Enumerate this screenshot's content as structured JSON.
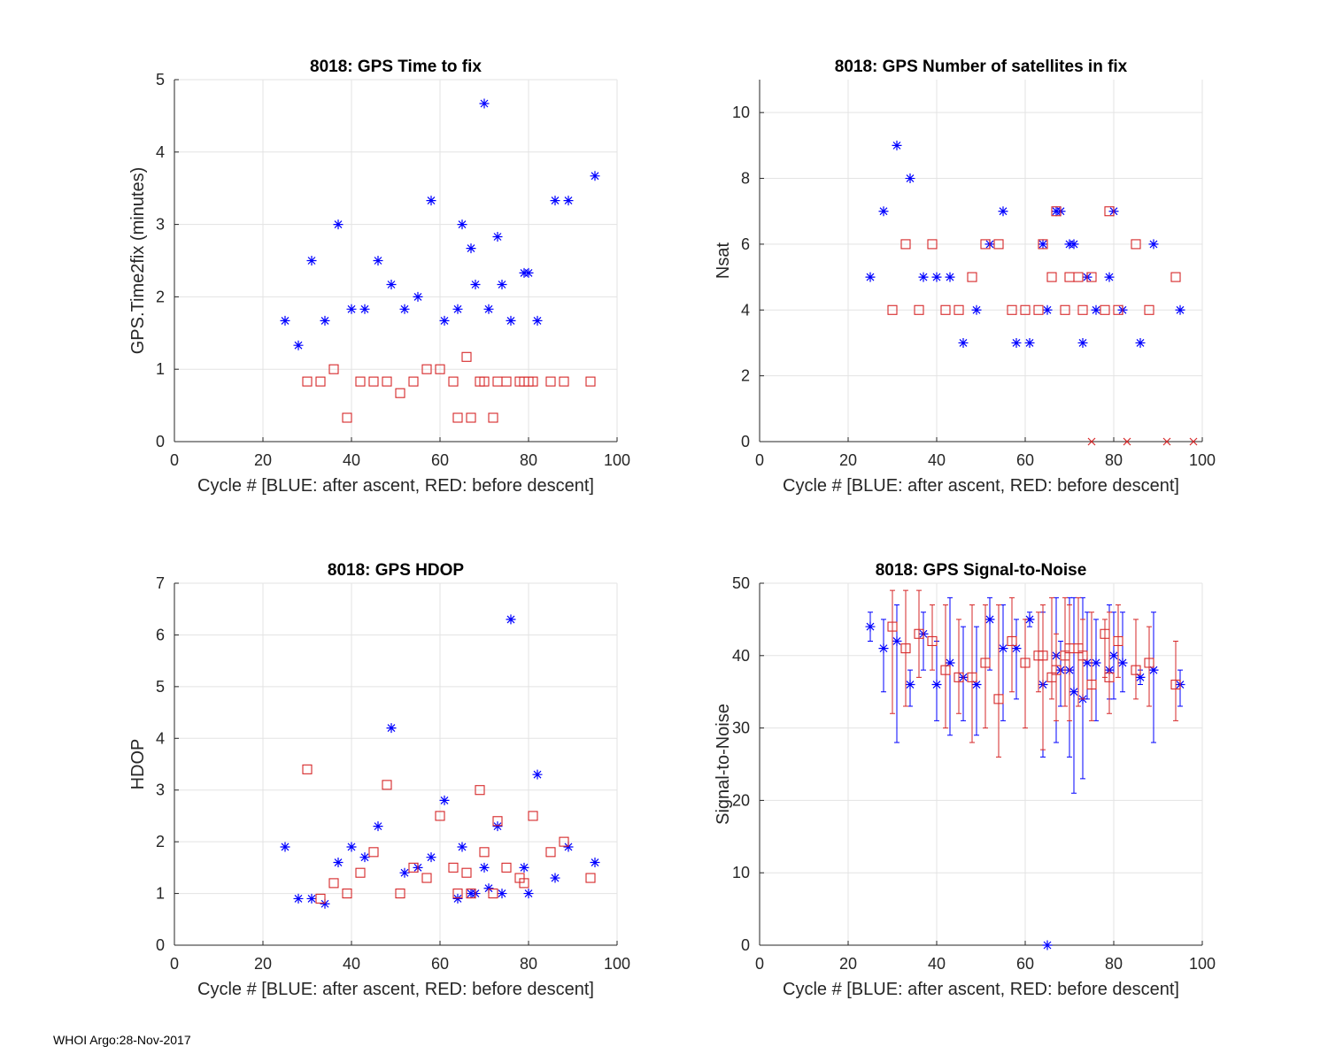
{
  "footer": "WHOI Argo:28-Nov-2017",
  "colors": {
    "blue": "#0000ff",
    "red": "#d62728",
    "grid": "#e3e3e3",
    "axis": "#262626"
  },
  "chart_data": [
    {
      "type": "scatter",
      "title": "8018: GPS Time to fix",
      "xlabel": "Cycle #  [BLUE: after ascent, RED: before descent]",
      "ylabel": "GPS.Time2fix (minutes)",
      "xlim": [
        0,
        100
      ],
      "ylim": [
        0,
        5
      ],
      "xticks": [
        0,
        20,
        40,
        60,
        80,
        100
      ],
      "yticks": [
        0,
        1,
        2,
        3,
        4,
        5
      ],
      "series": [
        {
          "name": "after ascent",
          "color": "blue",
          "marker": "star",
          "x": [
            25,
            28,
            31,
            34,
            37,
            40,
            43,
            46,
            49,
            52,
            55,
            58,
            61,
            64,
            65,
            67,
            68,
            70,
            71,
            73,
            74,
            76,
            79,
            80,
            82,
            86,
            89,
            95
          ],
          "y": [
            1.67,
            1.33,
            2.5,
            1.67,
            3.0,
            1.83,
            1.83,
            2.5,
            2.17,
            1.83,
            2.0,
            3.33,
            1.67,
            1.83,
            3.0,
            2.67,
            2.17,
            4.67,
            1.83,
            2.83,
            2.17,
            1.67,
            2.33,
            2.33,
            1.67,
            3.33,
            3.33,
            3.67
          ]
        },
        {
          "name": "before descent",
          "color": "red",
          "marker": "square",
          "x": [
            30,
            33,
            36,
            39,
            42,
            45,
            48,
            51,
            54,
            57,
            60,
            63,
            64,
            66,
            67,
            69,
            70,
            72,
            73,
            75,
            78,
            79,
            80,
            81,
            85,
            88,
            94
          ],
          "y": [
            0.83,
            0.83,
            1.0,
            0.33,
            0.83,
            0.83,
            0.83,
            0.67,
            0.83,
            1.0,
            1.0,
            0.83,
            0.33,
            1.17,
            0.33,
            0.83,
            0.83,
            0.33,
            0.83,
            0.83,
            0.83,
            0.83,
            0.83,
            0.83,
            0.83,
            0.83,
            0.83
          ]
        }
      ]
    },
    {
      "type": "scatter",
      "title": "8018: GPS Number of satellites in fix",
      "xlabel": "Cycle #  [BLUE: after ascent, RED: before descent]",
      "ylabel": "Nsat",
      "xlim": [
        0,
        100
      ],
      "ylim": [
        0,
        11
      ],
      "xticks": [
        0,
        20,
        40,
        60,
        80,
        100
      ],
      "yticks": [
        0,
        2,
        4,
        6,
        8,
        10
      ],
      "series": [
        {
          "name": "after ascent",
          "color": "blue",
          "marker": "star",
          "x": [
            25,
            28,
            31,
            34,
            37,
            40,
            43,
            46,
            49,
            52,
            55,
            58,
            61,
            64,
            65,
            67,
            68,
            70,
            71,
            73,
            74,
            76,
            79,
            80,
            82,
            86,
            89,
            95
          ],
          "y": [
            5,
            7,
            9,
            8,
            5,
            5,
            5,
            3,
            4,
            6,
            7,
            3,
            3,
            6,
            4,
            7,
            7,
            6,
            6,
            3,
            5,
            4,
            5,
            7,
            4,
            3,
            6,
            4
          ]
        },
        {
          "name": "before descent",
          "color": "red",
          "marker": "square",
          "x": [
            30,
            33,
            36,
            39,
            42,
            45,
            48,
            51,
            54,
            57,
            60,
            63,
            64,
            66,
            67,
            69,
            70,
            72,
            73,
            75,
            78,
            79,
            81,
            85,
            88,
            94
          ],
          "y": [
            4,
            6,
            4,
            6,
            4,
            4,
            5,
            6,
            6,
            4,
            4,
            4,
            6,
            5,
            7,
            4,
            5,
            5,
            4,
            5,
            4,
            7,
            4,
            6,
            4,
            5
          ]
        },
        {
          "name": "no fix",
          "color": "red",
          "marker": "x",
          "x": [
            75,
            83,
            92,
            98
          ],
          "y": [
            0,
            0,
            0,
            0
          ]
        }
      ]
    },
    {
      "type": "scatter",
      "title": "8018: GPS HDOP",
      "xlabel": "Cycle #  [BLUE: after ascent, RED: before descent]",
      "ylabel": "HDOP",
      "xlim": [
        0,
        100
      ],
      "ylim": [
        0,
        7
      ],
      "xticks": [
        0,
        20,
        40,
        60,
        80,
        100
      ],
      "yticks": [
        0,
        1,
        2,
        3,
        4,
        5,
        6,
        7
      ],
      "series": [
        {
          "name": "after ascent",
          "color": "blue",
          "marker": "star",
          "x": [
            25,
            28,
            31,
            34,
            37,
            40,
            43,
            46,
            49,
            52,
            55,
            58,
            61,
            64,
            65,
            67,
            68,
            70,
            71,
            73,
            74,
            76,
            79,
            80,
            82,
            86,
            89,
            95
          ],
          "y": [
            1.9,
            0.9,
            0.9,
            0.8,
            1.6,
            1.9,
            1.7,
            2.3,
            4.2,
            1.4,
            1.5,
            1.7,
            2.8,
            0.9,
            1.9,
            1.0,
            1.0,
            1.5,
            1.1,
            2.3,
            1.0,
            6.3,
            1.5,
            1.0,
            3.3,
            1.3,
            1.9,
            1.6
          ]
        },
        {
          "name": "before descent",
          "color": "red",
          "marker": "square",
          "x": [
            30,
            33,
            36,
            39,
            42,
            45,
            48,
            51,
            54,
            57,
            60,
            63,
            64,
            66,
            67,
            69,
            70,
            72,
            73,
            75,
            78,
            79,
            81,
            85,
            88,
            94
          ],
          "y": [
            3.4,
            0.9,
            1.2,
            1.0,
            1.4,
            1.8,
            3.1,
            1.0,
            1.5,
            1.3,
            2.5,
            1.5,
            1.0,
            1.4,
            1.0,
            3.0,
            1.8,
            1.0,
            2.4,
            1.5,
            1.3,
            1.2,
            2.5,
            1.8,
            2.0,
            1.3
          ]
        }
      ]
    },
    {
      "type": "errorbar",
      "title": "8018: GPS Signal-to-Noise",
      "xlabel": "Cycle #  [BLUE: after ascent, RED: before descent]",
      "ylabel": "Signal-to-Noise",
      "xlim": [
        0,
        100
      ],
      "ylim": [
        0,
        50
      ],
      "xticks": [
        0,
        20,
        40,
        60,
        80,
        100
      ],
      "yticks": [
        0,
        10,
        20,
        30,
        40,
        50
      ],
      "series": [
        {
          "name": "after ascent",
          "color": "blue",
          "marker": "star",
          "x": [
            25,
            28,
            31,
            34,
            37,
            40,
            43,
            46,
            49,
            52,
            55,
            58,
            61,
            64,
            65,
            67,
            68,
            70,
            71,
            73,
            74,
            76,
            79,
            80,
            82,
            86,
            89,
            95
          ],
          "y": [
            44,
            41,
            42,
            36,
            43,
            36,
            39,
            37,
            36,
            45,
            41,
            41,
            45,
            36,
            0,
            40,
            38,
            38,
            35,
            34,
            39,
            39,
            38,
            40,
            39,
            37,
            38,
            36
          ],
          "low": [
            42,
            35,
            28,
            33,
            38,
            31,
            29,
            31,
            29,
            38,
            31,
            34,
            44,
            26,
            0,
            28,
            33,
            26,
            21,
            23,
            34,
            31,
            34,
            34,
            35,
            36,
            28,
            33
          ],
          "high": [
            46,
            45,
            47,
            38,
            46,
            42,
            48,
            44,
            44,
            48,
            47,
            45,
            46,
            46,
            0,
            48,
            42,
            48,
            48,
            48,
            46,
            45,
            47,
            46,
            46,
            38,
            46,
            38
          ]
        },
        {
          "name": "before descent",
          "color": "red",
          "marker": "square",
          "x": [
            30,
            33,
            36,
            39,
            42,
            45,
            48,
            51,
            54,
            57,
            60,
            63,
            64,
            66,
            67,
            69,
            70,
            72,
            73,
            75,
            78,
            79,
            81,
            85,
            88,
            94
          ],
          "y": [
            44,
            41,
            43,
            42,
            38,
            37,
            37,
            39,
            34,
            42,
            39,
            40,
            40,
            37,
            38,
            40,
            41,
            41,
            40,
            36,
            43,
            37,
            42,
            38,
            39,
            36
          ],
          "low": [
            32,
            33,
            37,
            38,
            30,
            32,
            28,
            30,
            26,
            35,
            30,
            35,
            27,
            34,
            31,
            33,
            31,
            33,
            34,
            31,
            37,
            32,
            37,
            34,
            33,
            31
          ],
          "high": [
            49,
            49,
            49,
            47,
            47,
            45,
            47,
            47,
            47,
            48,
            45,
            46,
            47,
            48,
            43,
            48,
            47,
            48,
            45,
            46,
            45,
            46,
            47,
            45,
            44,
            42
          ]
        }
      ]
    }
  ]
}
